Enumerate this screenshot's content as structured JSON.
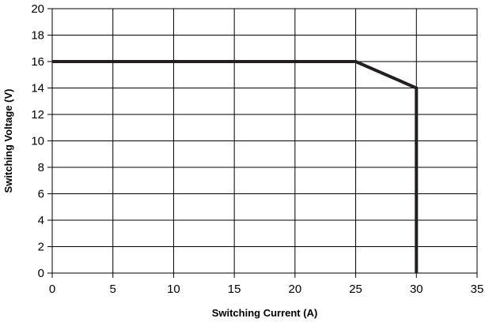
{
  "chart_data": {
    "type": "line",
    "title": "",
    "xlabel": "Switching Current (A)",
    "ylabel": "Switching Voltage (V)",
    "xlim": [
      0,
      35
    ],
    "ylim": [
      0,
      20
    ],
    "xticks": [
      0,
      5,
      10,
      15,
      20,
      25,
      30,
      35
    ],
    "yticks": [
      0,
      2,
      4,
      6,
      8,
      10,
      12,
      14,
      16,
      18,
      20
    ],
    "grid": true,
    "legend": "none",
    "series": [
      {
        "color": "#231f20",
        "x": [
          0,
          25,
          30,
          30
        ],
        "y": [
          16,
          16,
          14,
          0
        ]
      }
    ]
  }
}
